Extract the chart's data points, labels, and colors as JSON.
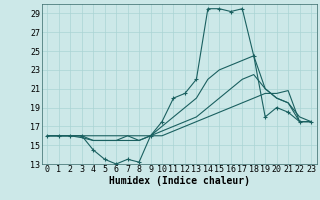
{
  "xlabel": "Humidex (Indice chaleur)",
  "xlim": [
    -0.5,
    23.5
  ],
  "ylim": [
    13,
    30
  ],
  "yticks": [
    13,
    15,
    17,
    19,
    21,
    23,
    25,
    27,
    29
  ],
  "xticks": [
    0,
    1,
    2,
    3,
    4,
    5,
    6,
    7,
    8,
    9,
    10,
    11,
    12,
    13,
    14,
    15,
    16,
    17,
    18,
    19,
    20,
    21,
    22,
    23
  ],
  "bg_color": "#cce8e8",
  "grid_color": "#aad4d4",
  "line_color": "#1a6060",
  "lines": [
    {
      "x": [
        0,
        1,
        2,
        3,
        4,
        5,
        6,
        7,
        8,
        9,
        10,
        11,
        12,
        13,
        14,
        15,
        16,
        17,
        18,
        19,
        20,
        21,
        22,
        23
      ],
      "y": [
        16,
        16,
        16,
        16,
        14.5,
        13.5,
        13,
        13.5,
        13.2,
        16,
        17.5,
        20,
        20.5,
        22,
        29.5,
        29.5,
        29.2,
        29.5,
        24.5,
        18,
        19,
        18.5,
        17.5,
        17.5
      ],
      "marker": "+"
    },
    {
      "x": [
        0,
        1,
        2,
        3,
        4,
        5,
        6,
        7,
        8,
        9,
        10,
        11,
        12,
        13,
        14,
        15,
        16,
        17,
        18,
        19,
        20,
        21,
        22,
        23
      ],
      "y": [
        16,
        16,
        16,
        16,
        15.5,
        15.5,
        15.5,
        16,
        15.5,
        16,
        17,
        18,
        19,
        20,
        22,
        23,
        23.5,
        24,
        24.5,
        21,
        20,
        19.5,
        18,
        17.5
      ],
      "marker": null
    },
    {
      "x": [
        0,
        1,
        2,
        3,
        4,
        5,
        6,
        7,
        8,
        9,
        10,
        11,
        12,
        13,
        14,
        15,
        16,
        17,
        18,
        19,
        20,
        21,
        22,
        23
      ],
      "y": [
        16,
        16,
        16,
        16,
        16,
        16,
        16,
        16,
        16,
        16,
        16.5,
        17,
        17.5,
        18,
        19,
        20,
        21,
        22,
        22.5,
        21,
        20,
        19.5,
        17.5,
        17.5
      ],
      "marker": null
    },
    {
      "x": [
        0,
        1,
        2,
        3,
        4,
        5,
        6,
        7,
        8,
        9,
        10,
        11,
        12,
        13,
        14,
        15,
        16,
        17,
        18,
        19,
        20,
        21,
        22,
        23
      ],
      "y": [
        16,
        16,
        16,
        15.8,
        15.5,
        15.5,
        15.5,
        15.5,
        15.5,
        16,
        16,
        16.5,
        17,
        17.5,
        18,
        18.5,
        19,
        19.5,
        20,
        20.5,
        20.5,
        20.8,
        17.5,
        17.5
      ],
      "marker": null
    }
  ],
  "xlabel_fontsize": 7,
  "tick_fontsize": 6,
  "grid_linewidth": 0.5,
  "line_width": 0.8,
  "marker_size": 3
}
